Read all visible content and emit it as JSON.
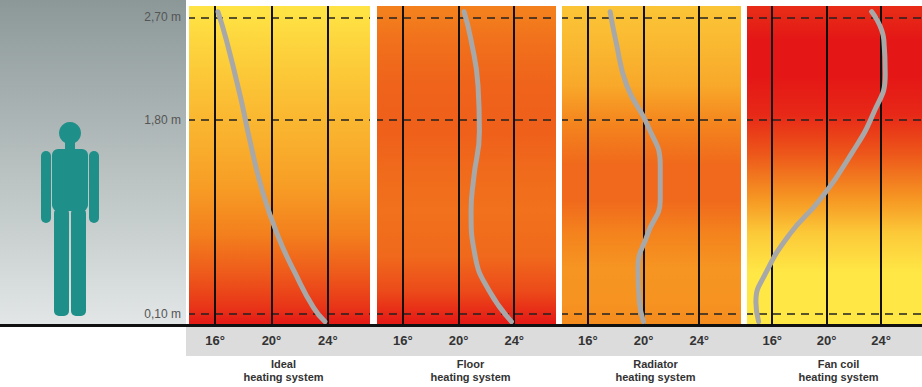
{
  "chart_data": [
    {
      "type": "line",
      "title": "Ideal\nheating system",
      "color": "#a8a8a8",
      "grid": true,
      "x": [
        16.2,
        16.8,
        17.8,
        18.5,
        19.3,
        20.4,
        21.7,
        23.0,
        23.8
      ],
      "values": [
        2.75,
        2.5,
        2.0,
        1.6,
        1.2,
        0.8,
        0.45,
        0.15,
        0.03
      ],
      "xlim": [
        14,
        27
      ],
      "xticks": [
        {
          "value": 16,
          "label": "16°"
        },
        {
          "value": 20,
          "label": "20°"
        },
        {
          "value": 24,
          "label": "24°"
        }
      ],
      "ylim": [
        0,
        2.8
      ],
      "yticks": [
        {
          "value": 0.1,
          "label": "0,10 m"
        },
        {
          "value": 1.8,
          "label": "1,80 m"
        },
        {
          "value": 2.7,
          "label": "2,70 m"
        }
      ]
    },
    {
      "type": "line",
      "title": "Floor\nheating system",
      "color": "#a8a8a8",
      "grid": true,
      "tick_labels": "x",
      "x": [
        20.4,
        20.9,
        21.4,
        21.5,
        21.1,
        20.9,
        21.2,
        22.2,
        23.8
      ],
      "values": [
        2.75,
        2.5,
        2.1,
        1.7,
        1.3,
        1.0,
        0.6,
        0.3,
        0.03
      ],
      "xlim": [
        14,
        27
      ],
      "xticks": [
        {
          "value": 16,
          "label": "16°"
        },
        {
          "value": 20,
          "label": "20°"
        },
        {
          "value": 24,
          "label": "24°"
        }
      ],
      "ylim": [
        0,
        2.8
      ],
      "yticks": [
        {
          "value": 0.1,
          "label": "0,10 m"
        },
        {
          "value": 1.8,
          "label": "1,80 m"
        },
        {
          "value": 2.7,
          "label": "2,70 m"
        }
      ]
    },
    {
      "type": "line",
      "title": "Radiator\nheating system",
      "color": "#a8a8a8",
      "grid": true,
      "tick_labels": "x",
      "x": [
        17.6,
        18.0,
        18.8,
        20.3,
        21.2,
        21.2,
        20.3,
        19.6,
        19.7,
        20.0
      ],
      "values": [
        2.75,
        2.5,
        2.1,
        1.75,
        1.4,
        1.1,
        0.8,
        0.5,
        0.2,
        0.03
      ],
      "xlim": [
        14,
        27
      ],
      "xticks": [
        {
          "value": 16,
          "label": "16°"
        },
        {
          "value": 20,
          "label": "20°"
        },
        {
          "value": 24,
          "label": "24°"
        }
      ],
      "ylim": [
        0,
        2.8
      ],
      "yticks": [
        {
          "value": 0.1,
          "label": "0,10 m"
        },
        {
          "value": 1.8,
          "label": "1,80 m"
        },
        {
          "value": 2.7,
          "label": "2,70 m"
        }
      ]
    },
    {
      "type": "line",
      "title": "Fan coil\nheating system",
      "color": "#a8a8a8",
      "grid": true,
      "tick_labels": "x",
      "x": [
        23.3,
        24.2,
        24.3,
        23.4,
        21.8,
        19.5,
        17.3,
        15.5,
        14.8,
        15.0
      ],
      "values": [
        2.75,
        2.5,
        2.2,
        1.85,
        1.5,
        1.1,
        0.8,
        0.45,
        0.2,
        0.03
      ],
      "xlim": [
        14,
        27
      ],
      "xticks": [
        {
          "value": 16,
          "label": "16°"
        },
        {
          "value": 20,
          "label": "20°"
        },
        {
          "value": 24,
          "label": "24°"
        }
      ],
      "ylim": [
        0,
        2.8
      ],
      "yticks": [
        {
          "value": 0.1,
          "label": "0,10 m"
        },
        {
          "value": 1.8,
          "label": "1,80 m"
        },
        {
          "value": 2.7,
          "label": "2,70 m"
        }
      ]
    }
  ]
}
